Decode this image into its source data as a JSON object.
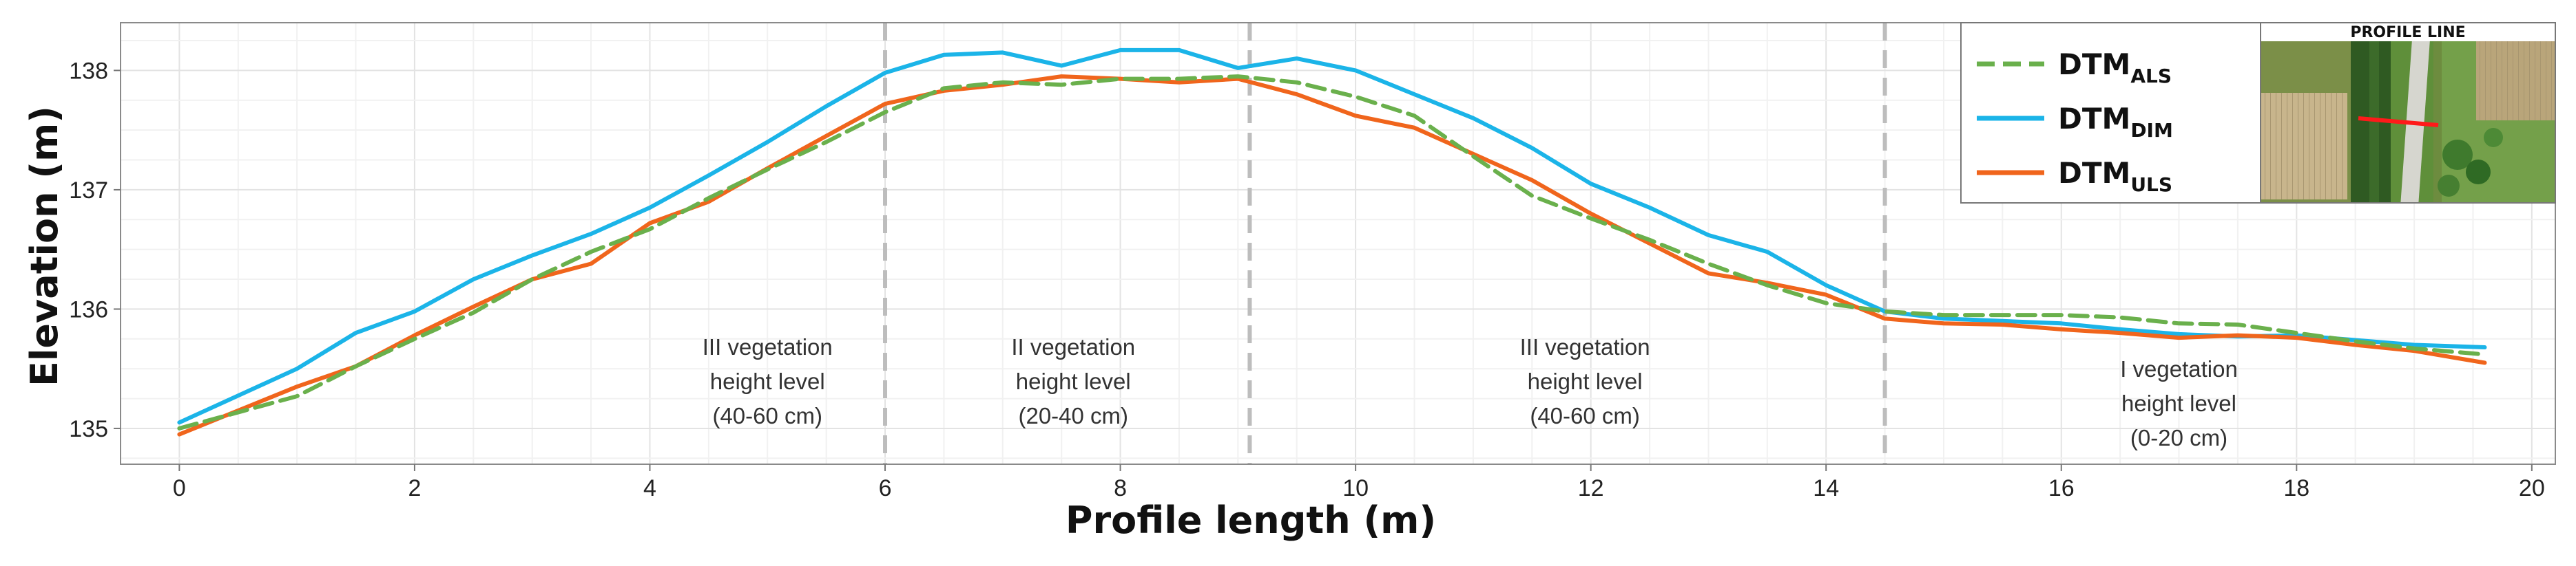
{
  "chart_data": {
    "type": "line",
    "title": "",
    "xlabel": "Profile length (m)",
    "ylabel": "Elevation (m)",
    "xlim": [
      -0.5,
      20.2
    ],
    "ylim": [
      134.7,
      138.4
    ],
    "xticks": [
      0,
      2,
      4,
      6,
      8,
      10,
      12,
      14,
      16,
      18,
      20
    ],
    "yticks": [
      135,
      136,
      137,
      138
    ],
    "grid": true,
    "legend_position": "top-right",
    "series": [
      {
        "name": "DTM",
        "subscript": "ALS",
        "color": "#6ab04c",
        "dash": "dashed",
        "x": [
          0,
          1,
          1.5,
          2,
          2.5,
          3,
          3.5,
          4,
          4.5,
          5,
          5.5,
          6,
          6.5,
          7,
          7.5,
          8,
          8.5,
          9,
          9.5,
          10,
          10.5,
          11,
          11.5,
          12,
          12.5,
          13,
          13.5,
          14,
          14.5,
          15,
          15.5,
          16,
          16.5,
          17,
          17.5,
          18,
          18.5,
          19,
          19.6
        ],
        "y": [
          135.0,
          135.27,
          135.52,
          135.75,
          135.97,
          136.25,
          136.48,
          136.67,
          136.93,
          137.17,
          137.4,
          137.65,
          137.85,
          137.9,
          137.88,
          137.93,
          137.93,
          137.95,
          137.9,
          137.78,
          137.62,
          137.28,
          136.95,
          136.76,
          136.58,
          136.38,
          136.2,
          136.05,
          135.98,
          135.95,
          135.95,
          135.95,
          135.93,
          135.88,
          135.87,
          135.8,
          135.73,
          135.67,
          135.62
        ]
      },
      {
        "name": "DTM",
        "subscript": "DIM",
        "color": "#1bb4e8",
        "dash": "solid",
        "x": [
          0,
          1,
          1.5,
          2,
          2.5,
          3,
          3.5,
          4,
          4.5,
          5,
          5.5,
          6,
          6.5,
          7,
          7.5,
          8,
          8.5,
          9,
          9.5,
          10,
          10.5,
          11,
          11.5,
          12,
          12.5,
          13,
          13.5,
          14,
          14.5,
          15,
          15.5,
          16,
          16.5,
          17,
          17.5,
          18,
          18.5,
          19,
          19.6
        ],
        "y": [
          135.05,
          135.5,
          135.8,
          135.98,
          136.25,
          136.45,
          136.63,
          136.85,
          137.12,
          137.4,
          137.7,
          137.98,
          138.13,
          138.15,
          138.04,
          138.17,
          138.17,
          138.02,
          138.1,
          138.0,
          137.8,
          137.6,
          137.35,
          137.05,
          136.85,
          136.62,
          136.48,
          136.2,
          135.98,
          135.92,
          135.9,
          135.88,
          135.83,
          135.79,
          135.77,
          135.78,
          135.74,
          135.7,
          135.68
        ]
      },
      {
        "name": "DTM",
        "subscript": "ULS",
        "color": "#f0651c",
        "dash": "solid",
        "x": [
          0,
          1,
          1.5,
          2,
          2.5,
          3,
          3.5,
          4,
          4.5,
          5,
          5.5,
          6,
          6.5,
          7,
          7.5,
          8,
          8.5,
          9,
          9.5,
          10,
          10.5,
          11,
          11.5,
          12,
          12.5,
          13,
          13.5,
          14,
          14.5,
          15,
          15.5,
          16,
          16.5,
          17,
          17.5,
          18,
          18.5,
          19,
          19.6
        ],
        "y": [
          134.95,
          135.35,
          135.52,
          135.78,
          136.02,
          136.25,
          136.38,
          136.72,
          136.9,
          137.18,
          137.45,
          137.72,
          137.83,
          137.88,
          137.95,
          137.93,
          137.9,
          137.93,
          137.8,
          137.62,
          137.52,
          137.3,
          137.08,
          136.8,
          136.55,
          136.3,
          136.22,
          136.12,
          135.92,
          135.88,
          135.87,
          135.83,
          135.8,
          135.76,
          135.78,
          135.76,
          135.7,
          135.65,
          135.55
        ]
      }
    ],
    "vertical_markers": [
      6.0,
      9.1,
      14.5
    ],
    "annotations": [
      {
        "x": 5.0,
        "lines": [
          "III vegetation",
          "height level",
          "(40-60 cm)"
        ]
      },
      {
        "x": 7.6,
        "lines": [
          "II vegetation",
          "height level",
          "(20-40 cm)"
        ]
      },
      {
        "x": 11.95,
        "lines": [
          "III vegetation",
          "height level",
          "(40-60 cm)"
        ]
      },
      {
        "x": 17.0,
        "lines": [
          "I vegetation",
          "height level",
          "(0-20 cm)"
        ]
      }
    ],
    "inset": {
      "title": "PROFILE LINE"
    }
  }
}
